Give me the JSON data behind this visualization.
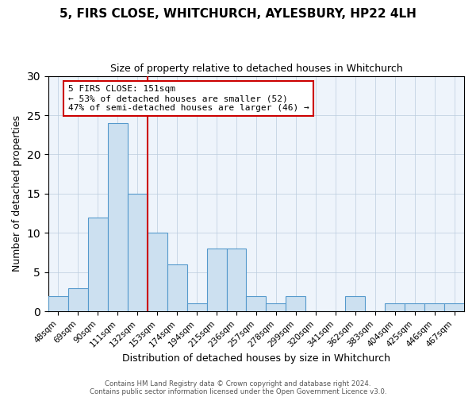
{
  "title": "5, FIRS CLOSE, WHITCHURCH, AYLESBURY, HP22 4LH",
  "subtitle": "Size of property relative to detached houses in Whitchurch",
  "xlabel": "Distribution of detached houses by size in Whitchurch",
  "ylabel": "Number of detached properties",
  "bin_labels": [
    "48sqm",
    "69sqm",
    "90sqm",
    "111sqm",
    "132sqm",
    "153sqm",
    "174sqm",
    "194sqm",
    "215sqm",
    "236sqm",
    "257sqm",
    "278sqm",
    "299sqm",
    "320sqm",
    "341sqm",
    "362sqm",
    "383sqm",
    "404sqm",
    "425sqm",
    "446sqm",
    "467sqm"
  ],
  "bar_heights": [
    2,
    3,
    12,
    24,
    15,
    10,
    6,
    1,
    8,
    8,
    2,
    1,
    2,
    0,
    0,
    2,
    0,
    1,
    1,
    1,
    1
  ],
  "bar_color": "#cce0f0",
  "bar_edge_color": "#5599cc",
  "vline_index": 5,
  "vline_color": "#cc0000",
  "annotation_title": "5 FIRS CLOSE: 151sqm",
  "annotation_line1": "← 53% of detached houses are smaller (52)",
  "annotation_line2": "47% of semi-detached houses are larger (46) →",
  "annotation_box_color": "#ffffff",
  "annotation_box_edge": "#cc0000",
  "ylim": [
    0,
    30
  ],
  "yticks": [
    0,
    5,
    10,
    15,
    20,
    25,
    30
  ],
  "footer1": "Contains HM Land Registry data © Crown copyright and database right 2024.",
  "footer2": "Contains public sector information licensed under the Open Government Licence v3.0.",
  "bg_color": "#eef4fb"
}
